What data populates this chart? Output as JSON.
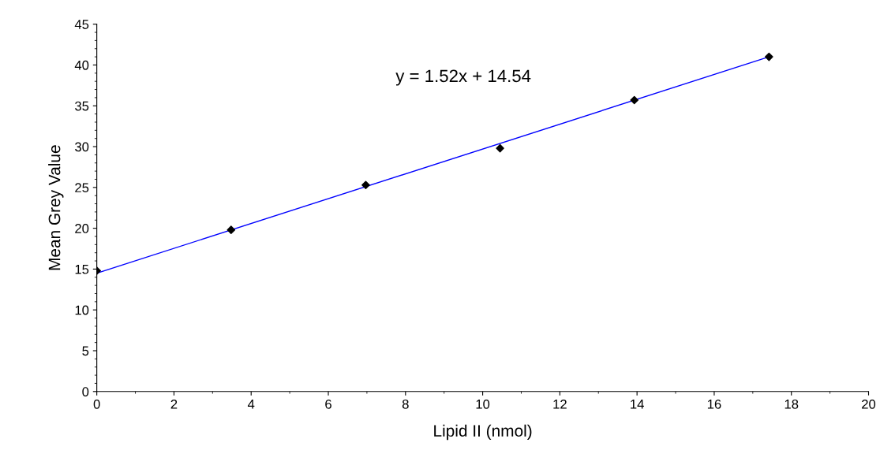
{
  "chart_data": {
    "type": "scatter",
    "xlabel": "Lipid II (nmol)",
    "ylabel": "Mean Grey Value",
    "grid": false,
    "legend": false,
    "xlim": [
      0,
      20
    ],
    "xticks": [
      0,
      2,
      4,
      6,
      8,
      10,
      12,
      14,
      16,
      18,
      20
    ],
    "ylim": [
      0,
      45
    ],
    "yticks": [
      0,
      5,
      10,
      15,
      20,
      25,
      30,
      35,
      40,
      45
    ],
    "series": [
      {
        "color": "#000000",
        "marker": "diamond",
        "x": [
          0,
          3.48,
          6.97,
          10.45,
          13.93,
          17.42
        ],
        "values": [
          14.8,
          19.8,
          25.3,
          29.8,
          35.7,
          41.0
        ]
      },
      {
        "type": "line",
        "color": "#0000ff",
        "x": [
          0,
          17.42
        ],
        "values": [
          14.5,
          41.0
        ]
      }
    ],
    "annotations": [
      "y = 1.52x + 14.54"
    ]
  }
}
